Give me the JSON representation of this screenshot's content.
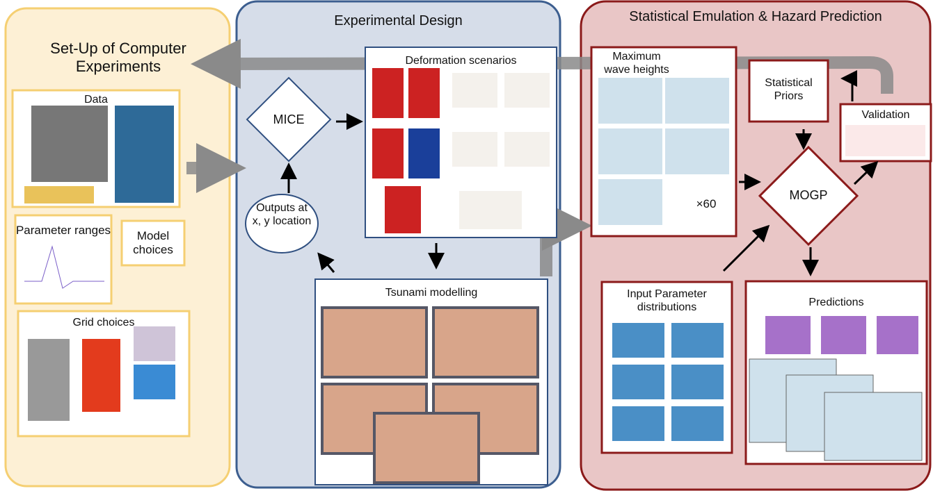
{
  "setup": {
    "title": "Set-Up of Computer Experiments",
    "data": "Data",
    "parameter_ranges": "Parameter ranges",
    "model_choices": "Model choices",
    "grid_choices": "Grid choices"
  },
  "design": {
    "title": "Experimental Design",
    "mice": "MICE",
    "outputs": "Outputs at x, y location",
    "deformation": "Deformation scenarios",
    "tsunami": "Tsunami modelling"
  },
  "emulation": {
    "title": "Statistical Emulation & Hazard Prediction",
    "max_wave": "Maximum wave heights",
    "multiplier": "×60",
    "priors": "Statistical Priors",
    "validation": "Validation",
    "mogp": "MOGP",
    "input_params": "Input Parameter distributions",
    "predictions": "Predictions"
  }
}
